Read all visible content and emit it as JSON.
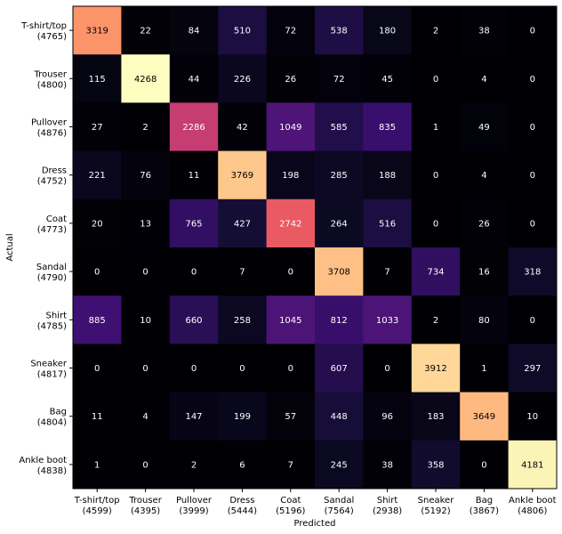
{
  "chart_data": {
    "type": "heatmap",
    "title": "",
    "xlabel": "Predicted",
    "ylabel": "Actual",
    "colormap": "magma",
    "grid": false,
    "x_categories": [
      {
        "label": "T-shirt/top",
        "count": "(4599)"
      },
      {
        "label": "Trouser",
        "count": "(4395)"
      },
      {
        "label": "Pullover",
        "count": "(3999)"
      },
      {
        "label": "Dress",
        "count": "(5444)"
      },
      {
        "label": "Coat",
        "count": "(5196)"
      },
      {
        "label": "Sandal",
        "count": "(7564)"
      },
      {
        "label": "Shirt",
        "count": "(2938)"
      },
      {
        "label": "Sneaker",
        "count": "(5192)"
      },
      {
        "label": "Bag",
        "count": "(3867)"
      },
      {
        "label": "Ankle boot",
        "count": "(4806)"
      }
    ],
    "y_categories": [
      {
        "label": "T-shirt/top",
        "count": "(4765)"
      },
      {
        "label": "Trouser",
        "count": "(4800)"
      },
      {
        "label": "Pullover",
        "count": "(4876)"
      },
      {
        "label": "Dress",
        "count": "(4752)"
      },
      {
        "label": "Coat",
        "count": "(4773)"
      },
      {
        "label": "Sandal",
        "count": "(4790)"
      },
      {
        "label": "Shirt",
        "count": "(4785)"
      },
      {
        "label": "Sneaker",
        "count": "(4817)"
      },
      {
        "label": "Bag",
        "count": "(4804)"
      },
      {
        "label": "Ankle boot",
        "count": "(4838)"
      }
    ],
    "values": [
      [
        3319,
        22,
        84,
        510,
        72,
        538,
        180,
        2,
        38,
        0
      ],
      [
        115,
        4268,
        44,
        226,
        26,
        72,
        45,
        0,
        4,
        0
      ],
      [
        27,
        2,
        2286,
        42,
        1049,
        585,
        835,
        1,
        49,
        0
      ],
      [
        221,
        76,
        11,
        3769,
        198,
        285,
        188,
        0,
        4,
        0
      ],
      [
        20,
        13,
        765,
        427,
        2742,
        264,
        516,
        0,
        26,
        0
      ],
      [
        0,
        0,
        0,
        7,
        0,
        3708,
        7,
        734,
        16,
        318
      ],
      [
        885,
        10,
        660,
        258,
        1045,
        812,
        1033,
        2,
        80,
        0
      ],
      [
        0,
        0,
        0,
        0,
        0,
        607,
        0,
        3912,
        1,
        297
      ],
      [
        11,
        4,
        147,
        199,
        57,
        448,
        96,
        183,
        3649,
        10
      ],
      [
        1,
        0,
        2,
        6,
        7,
        245,
        38,
        358,
        0,
        4181
      ]
    ],
    "vmin": 0,
    "vmax": 4268
  }
}
